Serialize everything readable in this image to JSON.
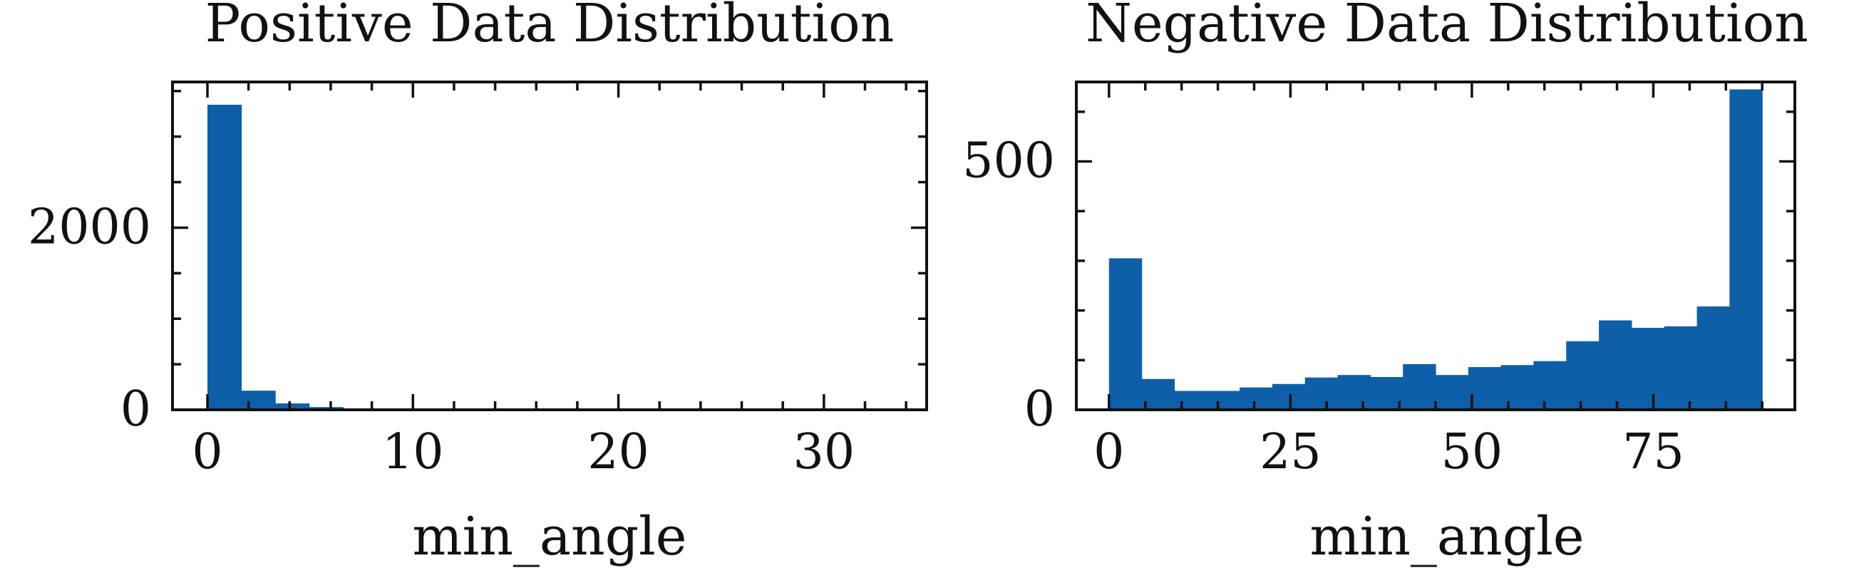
{
  "chart_data": [
    {
      "type": "bar",
      "title": "Positive Data Distribution",
      "xlabel": "min_angle",
      "ylabel": "",
      "xlim": [
        -1.7,
        35
      ],
      "ylim": [
        0,
        3600
      ],
      "xticks": [
        0,
        10,
        20,
        30
      ],
      "xtick_labels": [
        "0",
        "10",
        "20",
        "30"
      ],
      "yticks": [
        0,
        2000
      ],
      "ytick_labels": [
        "0",
        "2000"
      ],
      "x_minor_step": 2,
      "y_minor_step": 500,
      "bin_edges": [
        0,
        1.65,
        3.3,
        4.95,
        6.6,
        8.25,
        9.9,
        11.55,
        13.2,
        14.85,
        16.5,
        18.15,
        19.8,
        21.45,
        23.1,
        24.75,
        26.4,
        28.05,
        29.7,
        31.35,
        33.0
      ],
      "values": [
        3350,
        210,
        70,
        30,
        15,
        8,
        5,
        3,
        2,
        2,
        1,
        1,
        1,
        0,
        1,
        0,
        0,
        0,
        0,
        1
      ],
      "color": "#0f5fa8"
    },
    {
      "type": "bar",
      "title": "Negative Data Distribution",
      "xlabel": "min_angle",
      "ylabel": "",
      "xlim": [
        -4.5,
        94.5
      ],
      "ylim": [
        0,
        660
      ],
      "xticks": [
        0,
        25,
        50,
        75
      ],
      "xtick_labels": [
        "0",
        "25",
        "50",
        "75"
      ],
      "yticks": [
        0,
        500
      ],
      "ytick_labels": [
        "0",
        "500"
      ],
      "x_minor_step": 5,
      "y_minor_step": 100,
      "bin_edges": [
        0,
        4.5,
        9,
        13.5,
        18,
        22.5,
        27,
        31.5,
        36,
        40.5,
        45,
        49.5,
        54,
        58.5,
        63,
        67.5,
        72,
        76.5,
        81,
        85.5,
        90
      ],
      "values": [
        305,
        62,
        38,
        38,
        45,
        52,
        65,
        70,
        66,
        92,
        70,
        86,
        90,
        98,
        138,
        180,
        165,
        168,
        208,
        645
      ],
      "color": "#0f5fa8"
    }
  ]
}
